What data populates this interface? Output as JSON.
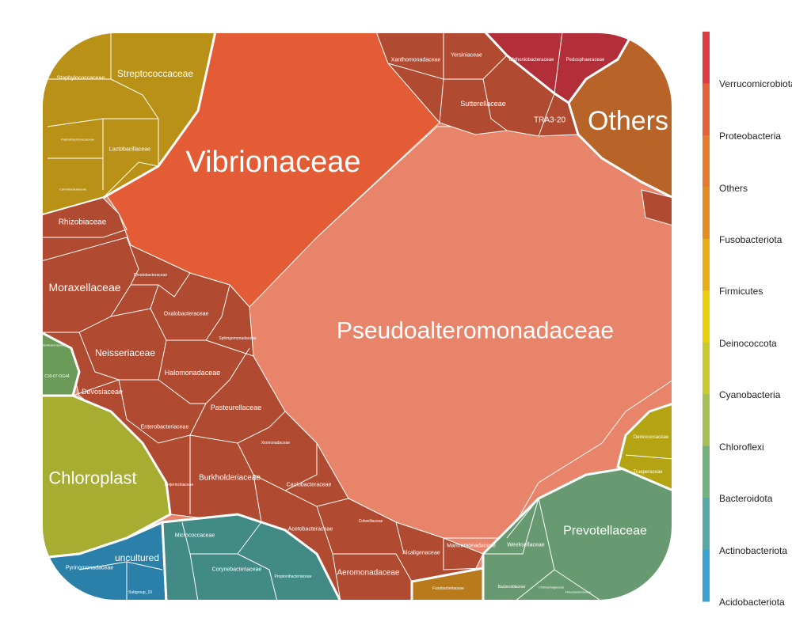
{
  "chart_data": {
    "type": "voronoi-treemap",
    "title": "",
    "legend": {
      "placement": "right",
      "labels": [
        "Verrucomicrobiota",
        "Proteobacteria",
        "Others",
        "Fusobacteriota",
        "Firmicutes",
        "Deinococcota",
        "Cyanobacteria",
        "Chloroflexi",
        "Bacteroidota",
        "Actinobacteriota",
        "Acidobacteriota"
      ],
      "colors": [
        "#dc3b3f",
        "#e3623a",
        "#e57a2e",
        "#e48d22",
        "#e8ac18",
        "#e9cf0b",
        "#cbc932",
        "#a4bf55",
        "#75b17d",
        "#57a9a5",
        "#3aa2d3"
      ]
    },
    "families": [
      {
        "name": "Pseudoalteromonadaceae",
        "phylum": "Proteobacteria"
      },
      {
        "name": "Vibrionaceae",
        "phylum": "Proteobacteria"
      },
      {
        "name": "Others",
        "phylum": "Others"
      },
      {
        "name": "Chloroplast",
        "phylum": "Cyanobacteria"
      },
      {
        "name": "Prevotellaceae",
        "phylum": "Bacteroidota"
      },
      {
        "name": "Streptococcaceae",
        "phylum": "Firmicutes"
      },
      {
        "name": "Staphylococcaceae",
        "phylum": "Firmicutes"
      },
      {
        "name": "Lactobacillaceae",
        "phylum": "Firmicutes"
      },
      {
        "name": "Moraxellaceae",
        "phylum": "Proteobacteria"
      },
      {
        "name": "Neisseriaceae",
        "phylum": "Proteobacteria"
      },
      {
        "name": "Rhizobiaceae",
        "phylum": "Proteobacteria"
      },
      {
        "name": "Rhodobacteraceae",
        "phylum": "Proteobacteria"
      },
      {
        "name": "Oxalobacteraceae",
        "phylum": "Proteobacteria"
      },
      {
        "name": "Sphingomonadaceae",
        "phylum": "Proteobacteria"
      },
      {
        "name": "Halomonadaceae",
        "phylum": "Proteobacteria"
      },
      {
        "name": "Devosiaceae",
        "phylum": "Proteobacteria"
      },
      {
        "name": "Pasteurellaceae",
        "phylum": "Proteobacteria"
      },
      {
        "name": "Enterobacteriaceae",
        "phylum": "Proteobacteria"
      },
      {
        "name": "Xiomonadaceae",
        "phylum": "Proteobacteria"
      },
      {
        "name": "Burkholderiaceae",
        "phylum": "Proteobacteria"
      },
      {
        "name": "Caulobacteraceae",
        "phylum": "Proteobacteria"
      },
      {
        "name": "Beijerinckiaceae",
        "phylum": "Proteobacteria"
      },
      {
        "name": "Acetobacteraceae",
        "phylum": "Proteobacteria"
      },
      {
        "name": "Colwelliaceae",
        "phylum": "Proteobacteria"
      },
      {
        "name": "Aeromonadaceae",
        "phylum": "Proteobacteria"
      },
      {
        "name": "Alcaligenaceae",
        "phylum": "Proteobacteria"
      },
      {
        "name": "Marinomonadaceae",
        "phylum": "Proteobacteria"
      },
      {
        "name": "Xanthomonadaceae",
        "phylum": "Proteobacteria"
      },
      {
        "name": "Yersiniaceae",
        "phylum": "Proteobacteria"
      },
      {
        "name": "Sutterellaceae",
        "phylum": "Proteobacteria"
      },
      {
        "name": "Chthoniobacteraceae",
        "phylum": "Verrucomicrobiota"
      },
      {
        "name": "Pedosphaeraceae",
        "phylum": "Verrucomicrobiota"
      },
      {
        "name": "TRA3-20",
        "phylum": "Proteobacteria"
      },
      {
        "name": "Deinococcaceae",
        "phylum": "Deinococcota"
      },
      {
        "name": "Trueperaceae",
        "phylum": "Deinococcota"
      },
      {
        "name": "Weeksellaceae",
        "phylum": "Bacteroidota"
      },
      {
        "name": "Bacteroidaceae",
        "phylum": "Bacteroidota"
      },
      {
        "name": "Chitinophagaceae",
        "phylum": "Bacteroidota"
      },
      {
        "name": "Flavobacteriaceae",
        "phylum": "Bacteroidota"
      },
      {
        "name": "Fusobacteriaceae",
        "phylum": "Fusobacteriota"
      },
      {
        "name": "Micrococcaceae",
        "phylum": "Actinobacteriota"
      },
      {
        "name": "Corynebacteriaceae",
        "phylum": "Actinobacteriota"
      },
      {
        "name": "Propionibacteriaceae",
        "phylum": "Actinobacteriota"
      },
      {
        "name": "uncultured",
        "phylum": "Acidobacteriota"
      },
      {
        "name": "Pyrinomonadaceae",
        "phylum": "Acidobacteriota"
      },
      {
        "name": "Subgroup_10",
        "phylum": "Acidobacteriota"
      },
      {
        "name": "Ardenticatenaceae",
        "phylum": "Chloroflexi"
      },
      {
        "name": "C30-67-OG44",
        "phylum": "Chloroflexi"
      },
      {
        "name": "Peptostreptococcaceae",
        "phylum": "Firmicutes"
      },
      {
        "name": "Carnobacteriaceae",
        "phylum": "Firmicutes"
      }
    ]
  }
}
